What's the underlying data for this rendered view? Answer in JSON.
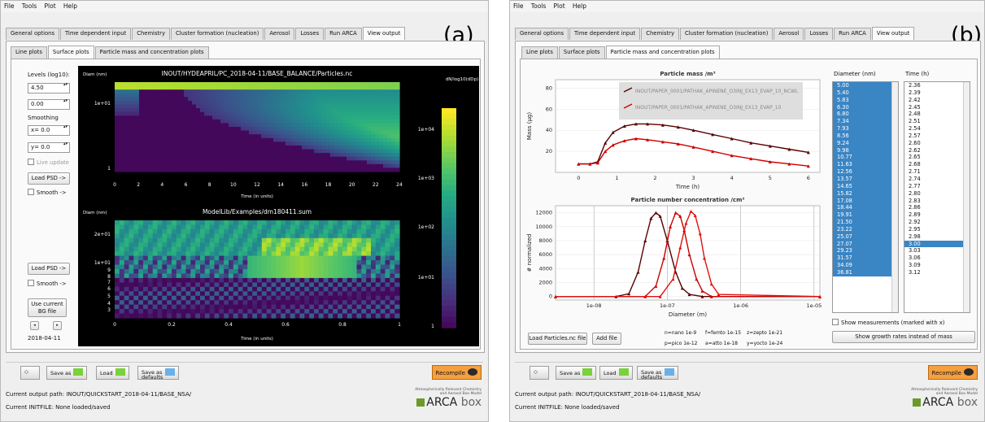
{
  "menu": [
    "File",
    "Tools",
    "Plot",
    "Help"
  ],
  "main_tabs": [
    "General options",
    "Time dependent input",
    "Chemistry",
    "Cluster formation (nucleation)",
    "Aerosol",
    "Losses",
    "Run ARCA",
    "View output"
  ],
  "panel_a": {
    "letter": "(a)",
    "sub_tabs": [
      "Line plots",
      "Surface plots",
      "Particle mass and concentration plots"
    ],
    "levels_label": "Levels (log10):",
    "level_max": "4.50",
    "level_min": "0.00",
    "smoothing_label": "Smoothing",
    "smooth_x": "x= 0.0",
    "smooth_y": "y= 0.0",
    "live_update": "Live update",
    "load_psd_1": "Load PSD ->",
    "smooth_1": "Smooth ->",
    "load_psd_2": "Load PSD ->",
    "smooth_2": "Smooth ->",
    "use_bg": "Use current BG file",
    "date": "2018-04-11",
    "plot1_title": "INOUT/HYDEAPRIL/PC_2018-04-11/BASE_BALANCE/Particles.nc",
    "plot1_ylabel": "Diam (nm)",
    "plot1_xlabel": "Time (in units)",
    "plot1_yticks": [
      "1e+01",
      "1"
    ],
    "plot1_xticks": [
      "0",
      "2",
      "4",
      "6",
      "8",
      "10",
      "12",
      "14",
      "16",
      "18",
      "20",
      "22",
      "24"
    ],
    "plot2_title": "ModelLib/Examples/dm180411.sum",
    "plot2_ylabel": "Diam (nm)",
    "plot2_xlabel": "Time (in units)",
    "plot2_yticks": [
      "2e+01",
      "1e+01",
      "9",
      "8",
      "7",
      "6",
      "5",
      "4",
      "3"
    ],
    "plot2_xticks": [
      "0",
      "0.2",
      "0.4",
      "0.6",
      "0.8",
      "1"
    ],
    "colorbar_label": "dN/log10(dDp)",
    "colorbar_ticks": [
      "1e+04",
      "1e+03",
      "1e+02",
      "1e+01",
      "1"
    ]
  },
  "panel_b": {
    "letter": "(b)",
    "sub_tabs": [
      "Line plots",
      "Surface plots",
      "Particle mass and concentration plots"
    ],
    "mass_title": "Particle mass /m³",
    "mass_ylabel": "Mass (µg)",
    "mass_xlabel": "Time (h)",
    "number_title": "Particle number concentration /cm³",
    "number_ylabel": "# normalized",
    "number_xlabel": "Diameter (m)",
    "legend": [
      "INOUT/PAPER_0001/PATHAK_APINENE_O3INJ_EX13_EVAP_10_NCWL",
      "INOUT/PAPER_0001/PATHAK_APINENE_O3INJ_EX13_EVAP_10"
    ],
    "diameter_header": "Diameter (nm)",
    "time_header": "Time (h)",
    "diameters": [
      "5.00",
      "5.40",
      "5.83",
      "6.30",
      "6.80",
      "7.34",
      "7.93",
      "8.56",
      "9.24",
      "9.98",
      "10.77",
      "11.63",
      "12.56",
      "13.57",
      "14.65",
      "15.82",
      "17.08",
      "18.44",
      "19.91",
      "21.50",
      "23.22",
      "25.07",
      "27.07",
      "29.23",
      "31.57",
      "34.09",
      "36.81"
    ],
    "times": [
      "2.36",
      "2.39",
      "2.42",
      "2.45",
      "2.48",
      "2.51",
      "2.54",
      "2.57",
      "2.60",
      "2.62",
      "2.65",
      "2.68",
      "2.71",
      "2.74",
      "2.77",
      "2.80",
      "2.83",
      "2.86",
      "2.89",
      "2.92",
      "2.95",
      "2.98",
      "3.00",
      "3.03",
      "3.06",
      "3.09",
      "3.12"
    ],
    "selected_time": "3.00",
    "show_measurements": "Show measurements (marked with x)",
    "show_growth": "Show growth rates instead of mass",
    "load_particles": "Load Particles.nc file",
    "add_file": "Add file",
    "prefixes": [
      "n=nano 1e-9",
      "f=femto 1e-15",
      "z=zepto 1e-21",
      "p=pico 1e-12",
      "a=atto 1e-18",
      "y=yocto 1e-24"
    ]
  },
  "toolbar": {
    "save_as": "Save as",
    "load": "Load",
    "save_defaults": "Save as defaults",
    "recompile": "Recompile"
  },
  "status": {
    "output_path_a": "Current output path: INOUT/QUICKSTART_2018-04-11/BASE_NSA/",
    "output_path_b": "Current output path: INOUT/QUICKSTART_2018-04-11/BASE_NSA/",
    "initfile": "Current INITFILE: None loaded/saved"
  },
  "logo": {
    "tagline": "Atmospherically Relevant Chemistry and Aerosol Box Model",
    "name": "ARCA",
    "suffix": "box"
  },
  "colors": {
    "accent": "#3a85c4",
    "series_dark": "#5a0000",
    "series_red": "#cc0000",
    "recompile": "#f5a040"
  },
  "chart_data": [
    {
      "type": "line",
      "title": "Particle mass /m³",
      "xlabel": "Time (h)",
      "ylabel": "Mass (µg)",
      "xlim": [
        -0.6,
        6.3
      ],
      "ylim": [
        0,
        88
      ],
      "xticks": [
        0,
        1,
        2,
        3,
        4,
        5,
        6
      ],
      "yticks": [
        20,
        40,
        60,
        80
      ],
      "series": [
        {
          "name": "INOUT/PAPER_0001/PATHAK_APINENE_O3INJ_EX13_EVAP_10_NCWL",
          "x": [
            0,
            0.3,
            0.5,
            0.7,
            0.9,
            1.2,
            1.5,
            1.8,
            2.2,
            2.6,
            3,
            3.5,
            4,
            4.5,
            5,
            5.5,
            6
          ],
          "y": [
            8,
            8,
            10,
            28,
            38,
            44,
            46,
            46,
            45,
            43,
            40,
            36,
            32,
            28,
            25,
            22,
            19
          ]
        },
        {
          "name": "INOUT/PAPER_0001/PATHAK_APINENE_O3INJ_EX13_EVAP_10",
          "x": [
            0,
            0.3,
            0.5,
            0.7,
            0.9,
            1.2,
            1.5,
            1.8,
            2.2,
            2.6,
            3,
            3.5,
            4,
            4.5,
            5,
            5.5,
            6
          ],
          "y": [
            8,
            8,
            9,
            20,
            26,
            30,
            32,
            31,
            29,
            27,
            24,
            20,
            16,
            13,
            10,
            8,
            6
          ]
        }
      ]
    },
    {
      "type": "line",
      "title": "Particle number concentration /cm³",
      "xlabel": "Diameter (m)",
      "ylabel": "# normalized",
      "xscale": "log",
      "xlim": [
        3e-09,
        1.2e-05
      ],
      "ylim": [
        -500,
        13000
      ],
      "xticks": [
        1e-08,
        1e-07,
        1e-06,
        1e-05
      ],
      "xticklabels": [
        "1e-08",
        "1e-07",
        "1e-06",
        "1e-05"
      ],
      "yticks": [
        0,
        2000,
        4000,
        6000,
        8000,
        10000,
        12000
      ],
      "series": [
        {
          "name": "INOUT/PAPER_0001/PATHAK_APINENE_O3INJ_EX13_EVAP_10_NCWL",
          "x": [
            3e-09,
            2e-08,
            3e-08,
            4e-08,
            5e-08,
            6e-08,
            7e-08,
            8e-08,
            1e-07,
            1.3e-07,
            1.6e-07,
            2e-07,
            3e-07,
            1.2e-05
          ],
          "y": [
            0,
            0,
            400,
            3500,
            8000,
            11200,
            12000,
            11500,
            8000,
            3500,
            1200,
            300,
            0,
            0
          ]
        },
        {
          "name": "INOUT/PAPER_0001/PATHAK_APINENE_O3INJ_EX13_EVAP_10",
          "x": [
            3e-09,
            5e-08,
            7e-08,
            9e-08,
            1.1e-07,
            1.3e-07,
            1.5e-07,
            1.7e-07,
            2e-07,
            2.5e-07,
            3e-07,
            4e-07,
            1.2e-05
          ],
          "y": [
            0,
            0,
            1500,
            5500,
            10000,
            12000,
            11500,
            9500,
            6000,
            2500,
            800,
            0,
            0
          ]
        },
        {
          "name": "",
          "x": [
            3e-09,
            8e-08,
            1.2e-07,
            1.5e-07,
            1.8e-07,
            2.1e-07,
            2.4e-07,
            2.8e-07,
            3.2e-07,
            4e-07,
            5e-07,
            1.2e-05
          ],
          "y": [
            0,
            0,
            2500,
            7000,
            10500,
            12200,
            11600,
            9000,
            5500,
            1800,
            300,
            0
          ]
        }
      ]
    }
  ]
}
